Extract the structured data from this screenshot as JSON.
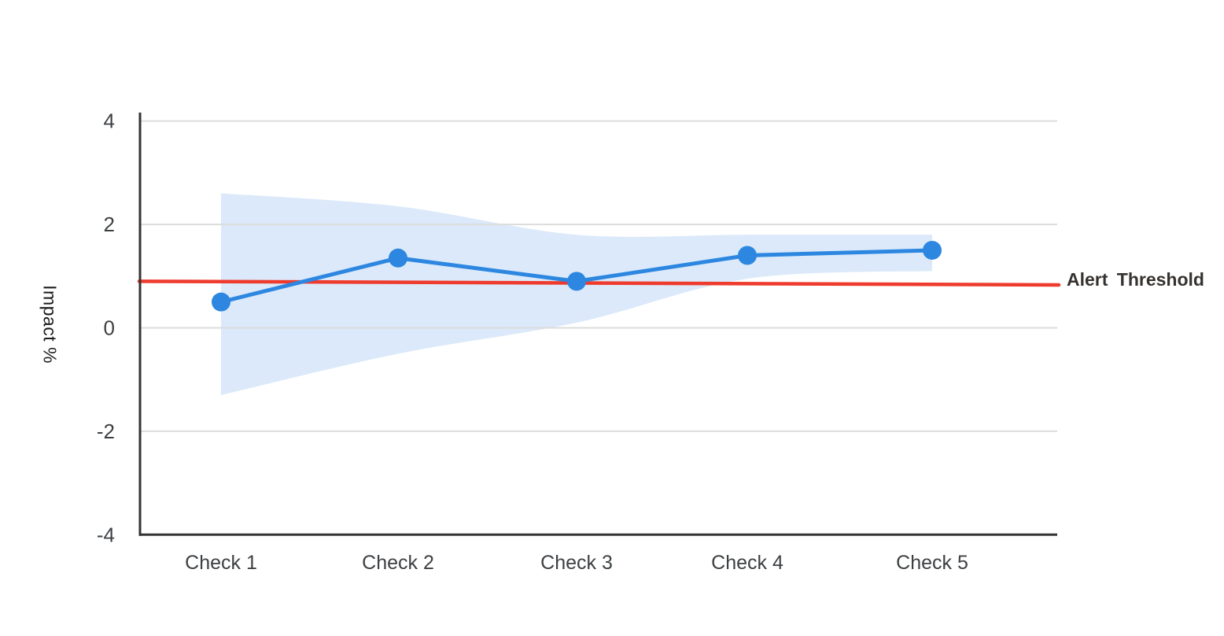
{
  "chart_data": {
    "type": "line",
    "title": "",
    "categories": [
      "Check 1",
      "Check 2",
      "Check 3",
      "Check 4",
      "Check 5"
    ],
    "series": [
      {
        "name": "impact",
        "values": [
          0.5,
          1.35,
          0.9,
          1.4,
          1.5
        ]
      }
    ],
    "confidence_band": {
      "upper": [
        2.6,
        2.35,
        1.8,
        1.8,
        1.8
      ],
      "lower": [
        -1.3,
        -0.5,
        0.1,
        0.95,
        1.1
      ]
    },
    "threshold": {
      "label": "Alert Threshold",
      "value_at_left": 0.9,
      "value_at_right": 0.83
    },
    "ylabel": "Impact %",
    "xlabel": "",
    "ylim": [
      -4,
      4
    ],
    "yticks": [
      "4",
      "2",
      "0",
      "-2",
      "-4"
    ],
    "ytick_values": [
      4,
      2,
      0,
      -2,
      -4
    ],
    "grid": true,
    "legend": "none",
    "colors": {
      "line": "#2d87e0",
      "marker": "#2d87e0",
      "band": "#dbe9fa",
      "threshold": "#ee3b2e",
      "grid": "#dcdcdc",
      "axis": "#333333",
      "tick_text": "#3d4043",
      "label_text": "#1c1c1c"
    }
  }
}
